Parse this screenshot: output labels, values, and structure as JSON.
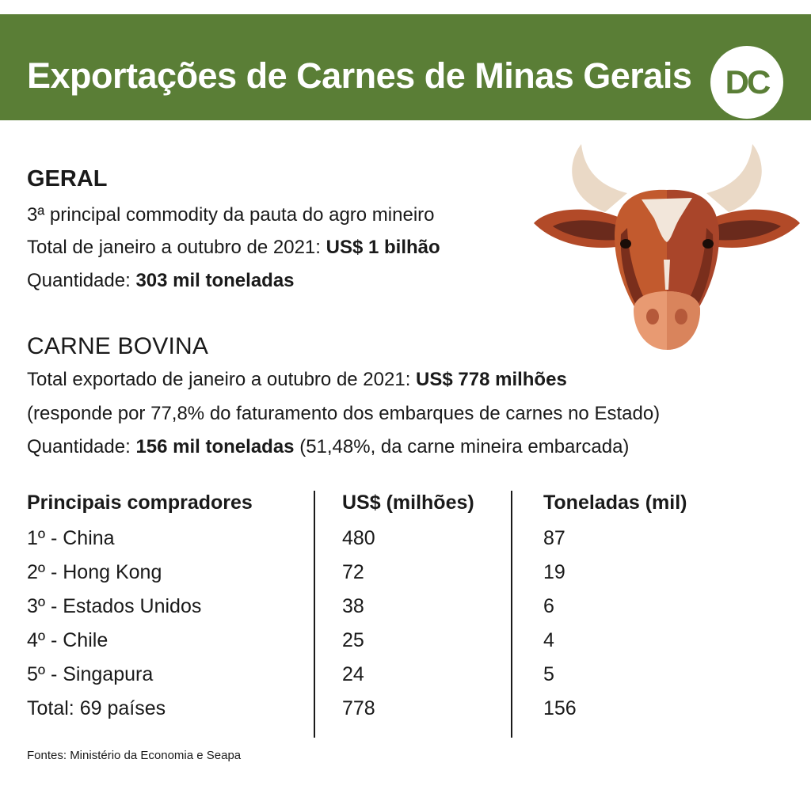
{
  "header": {
    "title": "Exportações de Carnes de Minas Gerais",
    "logo_text": "DC",
    "brand_color": "#5a7e36"
  },
  "geral": {
    "heading": "GERAL",
    "line1": "3ª principal commodity da pauta do agro mineiro",
    "line2_prefix": "Total de janeiro a outubro de 2021: ",
    "line2_bold": "US$ 1 bilhão",
    "line3_prefix": "Quantidade: ",
    "line3_bold": "303 mil  toneladas"
  },
  "bovina": {
    "heading": "CARNE BOVINA",
    "line1_prefix": "Total exportado de janeiro a outubro de 2021: ",
    "line1_bold": "US$ 778 milhões",
    "line2": "(responde por 77,8% do faturamento dos embarques de carnes no Estado)",
    "line3_prefix": "Quantidade: ",
    "line3_bold": "156 mil toneladas",
    "line3_suffix": " (51,48%, da carne mineira embarcada)"
  },
  "table": {
    "headers": [
      "Principais compradores",
      "US$ (milhões)",
      "Toneladas (mil)"
    ],
    "rows": [
      [
        "1º - China",
        "480",
        "87"
      ],
      [
        "2º - Hong Kong",
        "72",
        "19"
      ],
      [
        "3º - Estados Unidos",
        "38",
        "6"
      ],
      [
        "4º - Chile",
        "25",
        "4"
      ],
      [
        "5º - Singapura",
        "24",
        "5"
      ],
      [
        "Total: 69 países",
        "778",
        "156"
      ]
    ]
  },
  "source": "Fontes: Ministério da Economia e Seapa",
  "illustration_icon": "cow-head-icon"
}
